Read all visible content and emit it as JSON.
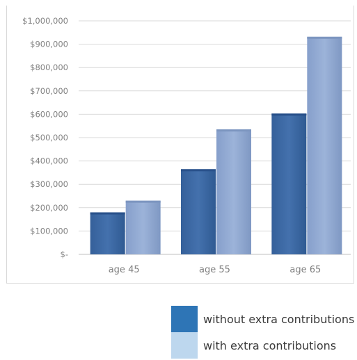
{
  "chart_data": {
    "type": "bar",
    "categories": [
      "age 45",
      "age 55",
      "age 65"
    ],
    "series": [
      {
        "name": "without extra contributions",
        "values": [
          180000,
          365000,
          603000
        ],
        "color": "#3e6aa5",
        "legend_color": "#2e75b6"
      },
      {
        "name": "with extra contributions",
        "values": [
          230000,
          535000,
          932000
        ],
        "color": "#94acd4",
        "legend_color": "#bdd7ee"
      }
    ],
    "y_ticks": [
      "$-",
      "$100,000",
      "$200,000",
      "$300,000",
      "$400,000",
      "$500,000",
      "$600,000",
      "$700,000",
      "$800,000",
      "$900,000",
      "$1,000,000"
    ],
    "ylim": [
      0,
      1000000
    ],
    "grid": true,
    "legend_position": "bottom-right"
  }
}
